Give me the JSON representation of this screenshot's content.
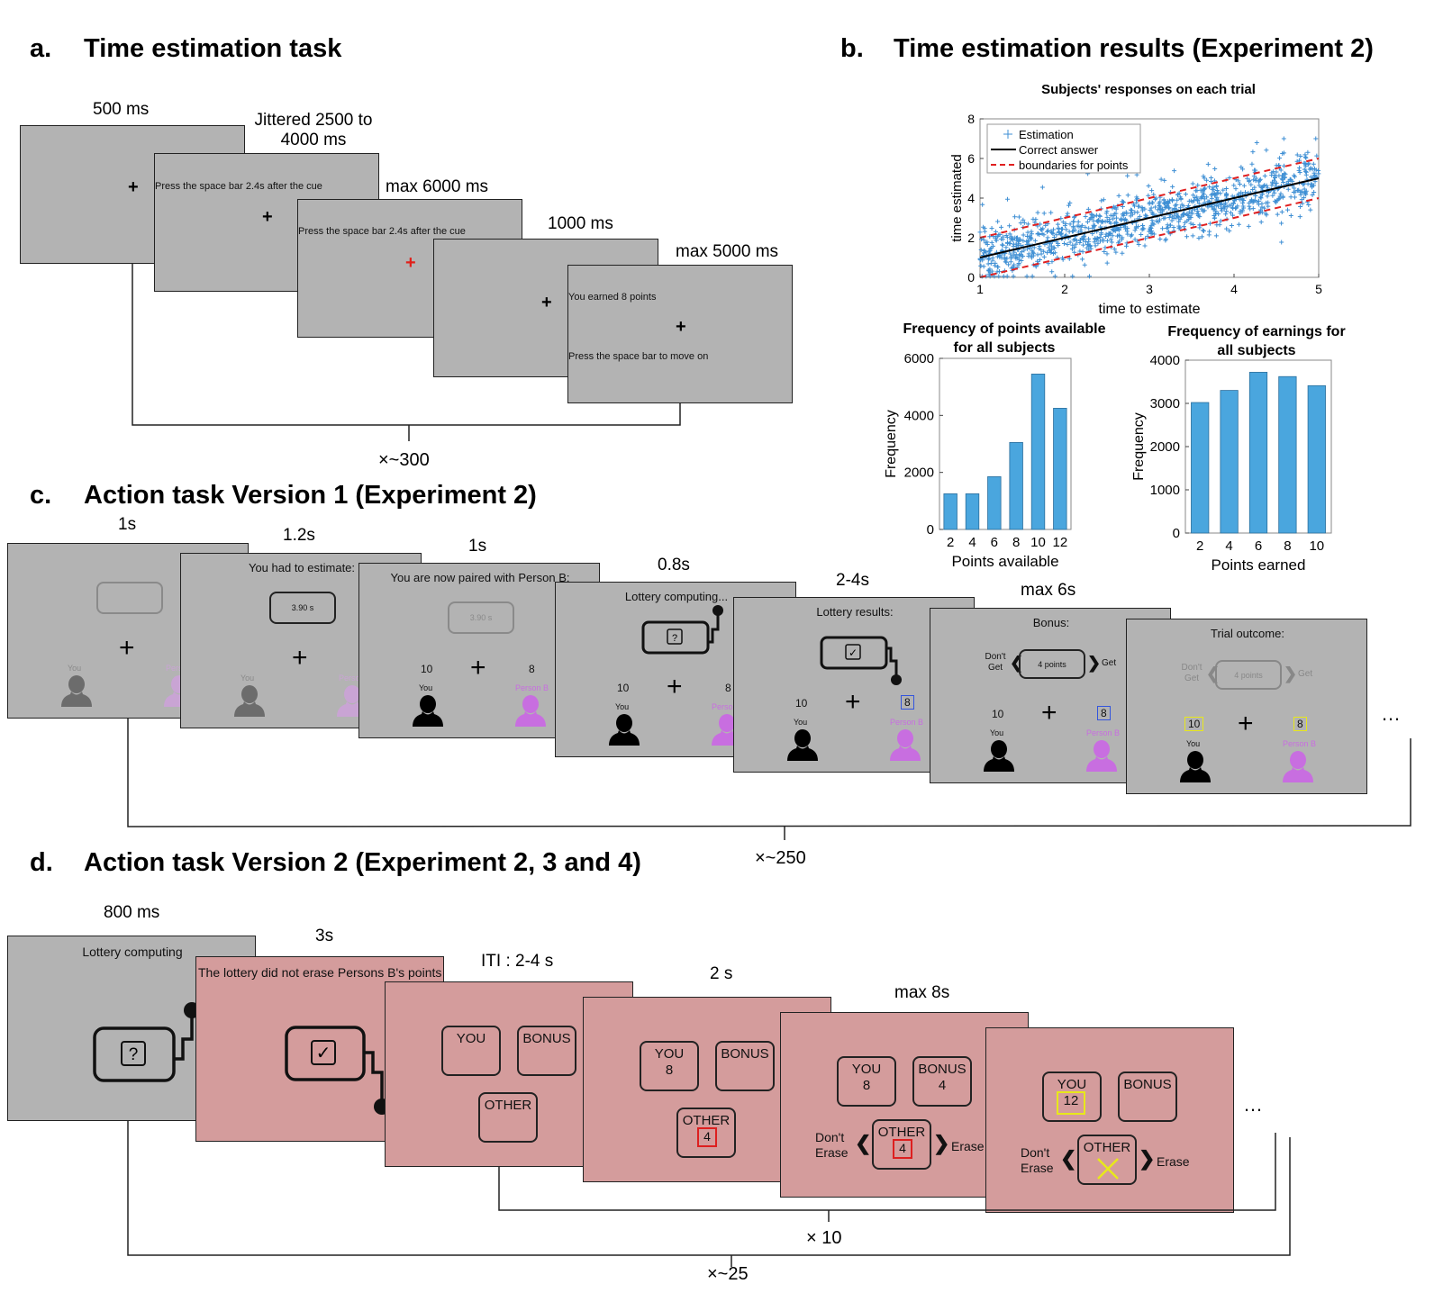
{
  "panel_a": {
    "letter": "a.",
    "title": "Time estimation task",
    "t1": "500 ms",
    "t2": "Jittered 2500 to 4000 ms",
    "t3": "max 6000 ms",
    "t4": "1000 ms",
    "t5": "max 5000 ms",
    "s2_text": "Press the space bar 2.4s after the cue",
    "s3_text": "Press the space bar 2.4s after the cue",
    "s5_text1": "You earned 8 points",
    "s5_text2": "Press the space bar to move on",
    "repeat": "×~300",
    "cue_color": "#e0201a"
  },
  "panel_b": {
    "letter": "b.",
    "title": "Time estimation results (Experiment 2)"
  },
  "panel_c": {
    "letter": "c.",
    "title": "Action task Version 1 (Experiment 2)",
    "t1": "1s",
    "t2": "1.2s",
    "t3": "1s",
    "t4": "0.8s",
    "t5": "2-4s",
    "t6": "max 6s",
    "had_to_estimate": "You had to estimate:",
    "estimate_value": "3.90 s",
    "paired": "You are now paired with Person B:",
    "lottery_computing": "Lottery computing...",
    "lottery_results": "Lottery results:",
    "bonus": "Bonus:",
    "trial_outcome": "Trial outcome:",
    "you": "You",
    "person_b": "Person B",
    "person_b_cut": "Perso",
    "you_val": "10",
    "other_val": "8",
    "dont_get": "Don't Get",
    "get": "Get",
    "bonus_points": "4 points",
    "repeat": "×~250",
    "ellipsis": "…",
    "purple": "#c86ee0",
    "blue_frame": "#3355dd",
    "yellow_frame": "#e8e81a"
  },
  "panel_d": {
    "letter": "d.",
    "title": "Action task Version 2 (Experiment 2, 3 and 4)",
    "t1": "800 ms",
    "t2": "3s",
    "t3": "ITI : 2-4 s",
    "t4": "2 s",
    "t5": "max 8s",
    "lottery_computing": "Lottery computing",
    "lottery_msg": "The lottery did not erase Persons B's points",
    "you": "YOU",
    "bonus": "BONUS",
    "other": "OTHER",
    "you_val": "8",
    "bonus_val": "4",
    "other_val": "4",
    "you_val_final": "12",
    "dont_erase": "Don't Erase",
    "erase": "Erase",
    "inner_repeat": "× 10",
    "outer_repeat": "×~25",
    "ellipsis": "…",
    "red_frame": "#dd1f1f",
    "yellow_frame": "#e8e81a"
  },
  "chart_data": [
    {
      "type": "scatter",
      "title": "Subjects' responses on each trial",
      "xlabel": "time to estimate",
      "ylabel": "time estimated",
      "xlim": [
        1,
        5
      ],
      "ylim": [
        0,
        8
      ],
      "xticks": [
        1,
        2,
        3,
        4,
        5
      ],
      "yticks": [
        0,
        2,
        4,
        6,
        8
      ],
      "legend": [
        "Estimation",
        "Correct answer",
        "boundaries for points"
      ],
      "legend_position": "top-left",
      "series": [
        {
          "name": "Estimation",
          "kind": "scatter",
          "color": "#3e8fd4"
        },
        {
          "name": "Correct answer",
          "kind": "line",
          "color": "#000000",
          "x": [
            1,
            5
          ],
          "y": [
            1,
            5
          ]
        },
        {
          "name": "boundaries for points",
          "kind": "dashed",
          "color": "#e02020",
          "x": [
            1,
            5
          ],
          "y_upper": [
            2,
            6
          ],
          "y_lower": [
            0,
            4
          ]
        }
      ]
    },
    {
      "type": "bar",
      "title": "Frequency of points available for all subjects",
      "xlabel": "Points available",
      "ylabel": "Frequency",
      "categories": [
        "2",
        "4",
        "6",
        "8",
        "10",
        "12"
      ],
      "values": [
        1250,
        1250,
        1850,
        3050,
        5450,
        4250
      ],
      "ylim": [
        0,
        6000
      ],
      "yticks": [
        0,
        2000,
        4000,
        6000
      ],
      "color": "#4aa6de"
    },
    {
      "type": "bar",
      "title": "Frequency of earnings for all subjects",
      "xlabel": "Points earned",
      "ylabel": "Frequency",
      "categories": [
        "2",
        "4",
        "6",
        "8",
        "10"
      ],
      "values": [
        3020,
        3300,
        3720,
        3620,
        3410
      ],
      "ylim": [
        0,
        4000
      ],
      "yticks": [
        0,
        1000,
        2000,
        3000,
        4000
      ],
      "color": "#4aa6de"
    }
  ]
}
